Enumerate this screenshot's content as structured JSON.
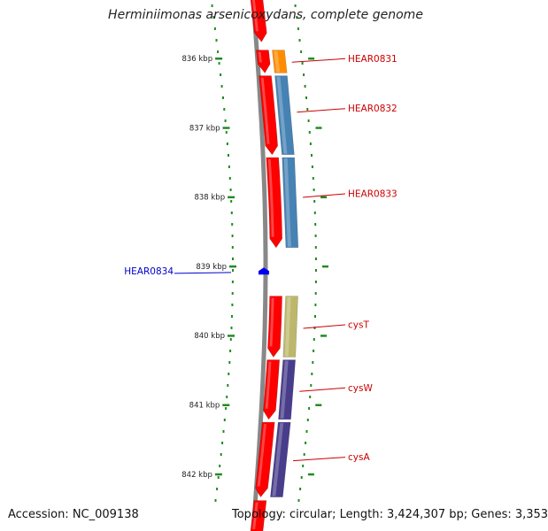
{
  "title": "Herminiimonas arsenicoxydans, complete genome",
  "footer": {
    "accession": "Accession: NC_009138",
    "topology": "Topology: circular; Length: 3,424,307 bp; Genes: 3,353"
  },
  "colors": {
    "cds": "#ff0000",
    "backbone": "#888888",
    "tick": "#228b22",
    "forward_label": "#cc0000",
    "reverse_label": "#0000cc",
    "HEAR0831": "#ff8c00",
    "HEAR0832": "#4682b4",
    "HEAR0833": "#4682b4",
    "cysT": "#bdb76b",
    "cysW": "#483d8b",
    "cysA": "#483d8b"
  },
  "ticks": [
    {
      "kbp": 836,
      "label": "836 kbp"
    },
    {
      "kbp": 837,
      "label": "837 kbp"
    },
    {
      "kbp": 838,
      "label": "838 kbp"
    },
    {
      "kbp": 839,
      "label": "839 kbp"
    },
    {
      "kbp": 840,
      "label": "840 kbp"
    },
    {
      "kbp": 841,
      "label": "841 kbp"
    },
    {
      "kbp": 842,
      "label": "842 kbp"
    }
  ],
  "genes": [
    {
      "name": "HEAR0831",
      "strand": "+",
      "start_kbp": 835.88,
      "end_kbp": 836.21,
      "label_kbp": 836.03
    },
    {
      "name": "HEAR0832",
      "strand": "+",
      "start_kbp": 836.25,
      "end_kbp": 837.39,
      "label_kbp": 836.75
    },
    {
      "name": "HEAR0833",
      "strand": "+",
      "start_kbp": 837.43,
      "end_kbp": 838.73,
      "label_kbp": 837.98
    },
    {
      "name": "HEAR0834",
      "strand": "-",
      "start_kbp": 839.03,
      "end_kbp": 839.12,
      "label_kbp": 839.07
    },
    {
      "name": "cysT",
      "strand": "+",
      "start_kbp": 839.43,
      "end_kbp": 840.31,
      "label_kbp": 839.87
    },
    {
      "name": "cysW",
      "strand": "+",
      "start_kbp": 840.35,
      "end_kbp": 841.21,
      "label_kbp": 840.78
    },
    {
      "name": "cysA",
      "strand": "+",
      "start_kbp": 841.25,
      "end_kbp": 842.33,
      "label_kbp": 841.78
    }
  ]
}
